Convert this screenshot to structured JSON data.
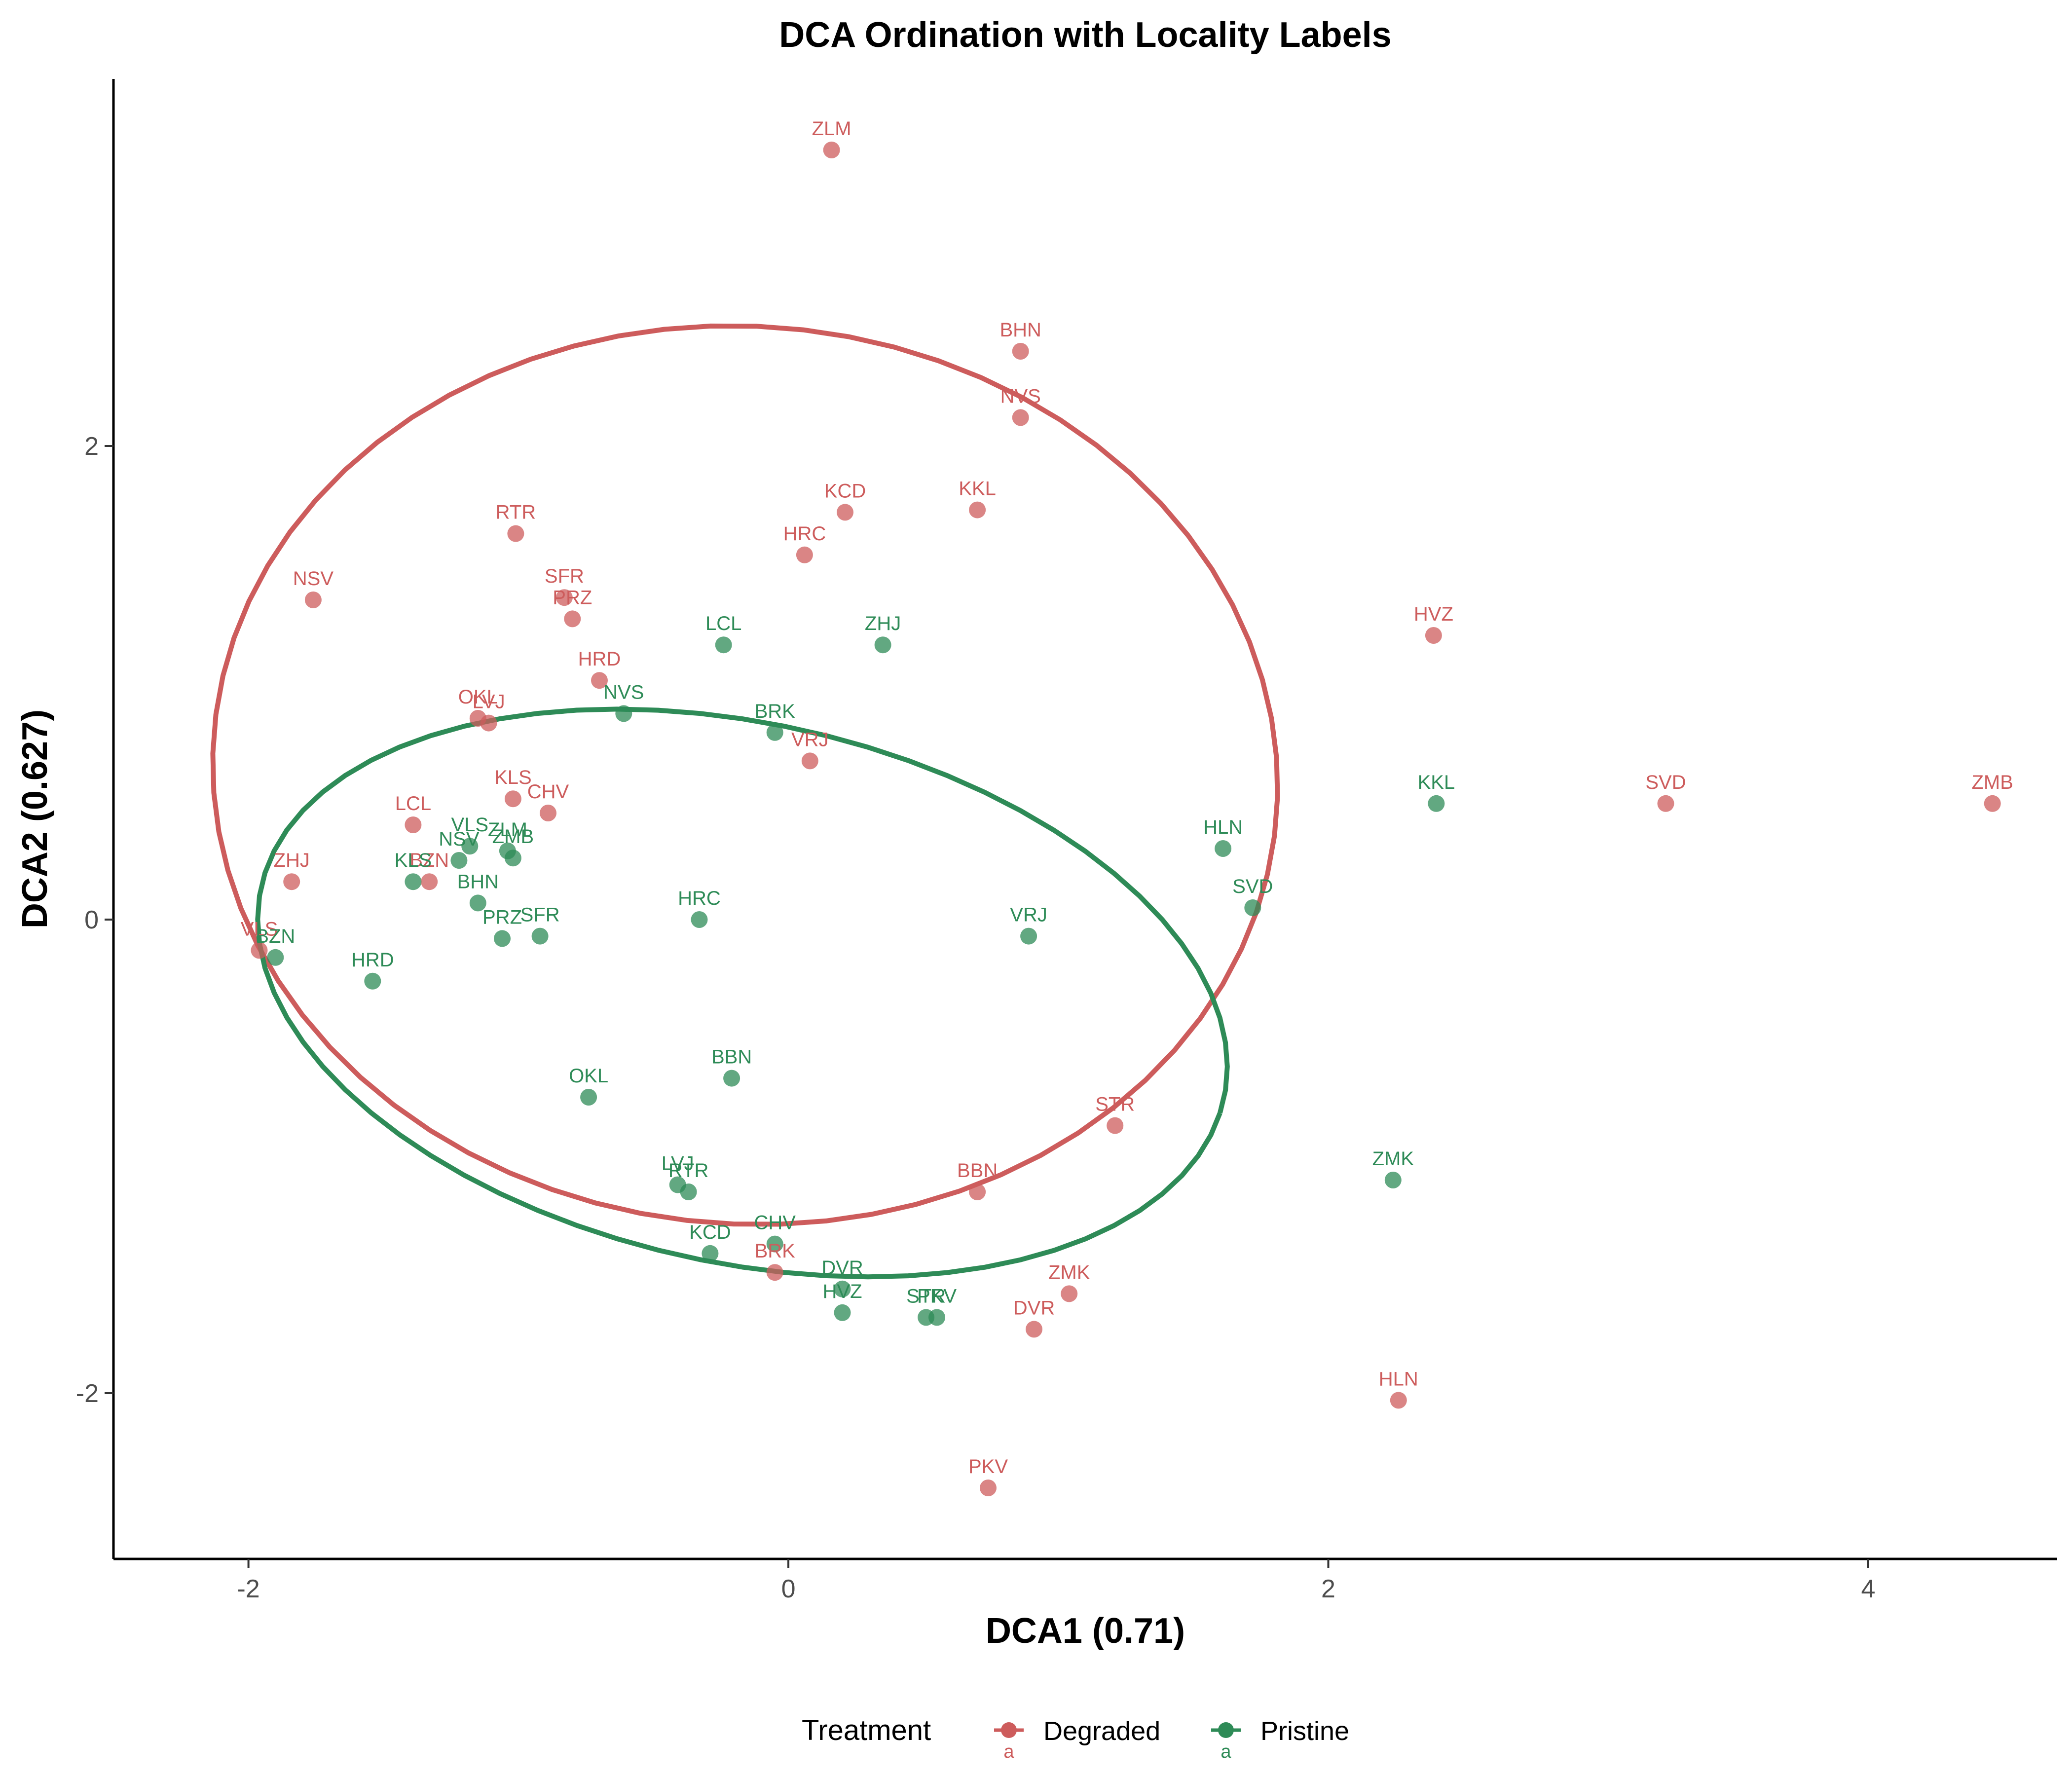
{
  "chart_data": {
    "type": "scatter",
    "title": "DCA Ordination with Locality Labels",
    "xlabel": "DCA1 (0.71)",
    "ylabel": "DCA2 (0.627)",
    "xlim": [
      -2.5,
      4.7
    ],
    "ylim": [
      -2.7,
      3.55
    ],
    "xticks": [
      -2,
      0,
      2,
      4
    ],
    "yticks": [
      -2,
      0,
      2
    ],
    "grid": false,
    "legend": {
      "title": "Treatment",
      "position": "bottom",
      "key_text": "a"
    },
    "series": [
      {
        "name": "Degraded",
        "color": "#cd5c5c",
        "points": [
          {
            "label": "ZLM",
            "x": 0.16,
            "y": 3.25
          },
          {
            "label": "BHN",
            "x": 0.86,
            "y": 2.4
          },
          {
            "label": "NVS",
            "x": 0.86,
            "y": 2.12
          },
          {
            "label": "KCD",
            "x": 0.21,
            "y": 1.72
          },
          {
            "label": "KKL",
            "x": 0.7,
            "y": 1.73
          },
          {
            "label": "RTR",
            "x": -1.01,
            "y": 1.63
          },
          {
            "label": "HRC",
            "x": 0.06,
            "y": 1.54
          },
          {
            "label": "NSV",
            "x": -1.76,
            "y": 1.35
          },
          {
            "label": "SFR",
            "x": -0.83,
            "y": 1.36
          },
          {
            "label": "PRZ",
            "x": -0.8,
            "y": 1.27
          },
          {
            "label": "HVZ",
            "x": 2.39,
            "y": 1.2
          },
          {
            "label": "HRD",
            "x": -0.7,
            "y": 1.01
          },
          {
            "label": "OKL",
            "x": -1.15,
            "y": 0.85
          },
          {
            "label": "LVJ",
            "x": -1.11,
            "y": 0.83
          },
          {
            "label": "VRJ",
            "x": 0.08,
            "y": 0.67
          },
          {
            "label": "KLS",
            "x": -1.02,
            "y": 0.51
          },
          {
            "label": "CHV",
            "x": -0.89,
            "y": 0.45
          },
          {
            "label": "LCL",
            "x": -1.39,
            "y": 0.4
          },
          {
            "label": "SVD",
            "x": 3.25,
            "y": 0.49
          },
          {
            "label": "ZMB",
            "x": 4.46,
            "y": 0.49
          },
          {
            "label": "ZHJ",
            "x": -1.84,
            "y": 0.16
          },
          {
            "label": "BZN",
            "x": -1.33,
            "y": 0.16
          },
          {
            "label": "VLS",
            "x": -1.96,
            "y": -0.13
          },
          {
            "label": "STR",
            "x": 1.21,
            "y": -0.87
          },
          {
            "label": "BBN",
            "x": 0.7,
            "y": -1.15
          },
          {
            "label": "BRK",
            "x": -0.05,
            "y": -1.49
          },
          {
            "label": "ZMK",
            "x": 1.04,
            "y": -1.58
          },
          {
            "label": "DVR",
            "x": 0.91,
            "y": -1.73
          },
          {
            "label": "HLN",
            "x": 2.26,
            "y": -2.03
          },
          {
            "label": "PKV",
            "x": 0.74,
            "y": -2.4
          }
        ]
      },
      {
        "name": "Pristine",
        "color": "#2e8b57",
        "points": [
          {
            "label": "LCL",
            "x": -0.24,
            "y": 1.16
          },
          {
            "label": "ZHJ",
            "x": 0.35,
            "y": 1.16
          },
          {
            "label": "NVS",
            "x": -0.61,
            "y": 0.87
          },
          {
            "label": "BRK",
            "x": -0.05,
            "y": 0.79
          },
          {
            "label": "KKL",
            "x": 2.4,
            "y": 0.49
          },
          {
            "label": "HLN",
            "x": 1.61,
            "y": 0.3
          },
          {
            "label": "NSV",
            "x": -1.22,
            "y": 0.25
          },
          {
            "label": "VLS",
            "x": -1.18,
            "y": 0.31
          },
          {
            "label": "ZLM",
            "x": -1.04,
            "y": 0.29
          },
          {
            "label": "ZMB",
            "x": -1.02,
            "y": 0.26
          },
          {
            "label": "KLS",
            "x": -1.39,
            "y": 0.16
          },
          {
            "label": "BHN",
            "x": -1.15,
            "y": 0.07
          },
          {
            "label": "SVD",
            "x": 1.72,
            "y": 0.05
          },
          {
            "label": "HRC",
            "x": -0.33,
            "y": 0.0
          },
          {
            "label": "VRJ",
            "x": 0.89,
            "y": -0.07
          },
          {
            "label": "PRZ",
            "x": -1.06,
            "y": -0.08
          },
          {
            "label": "SFR",
            "x": -0.92,
            "y": -0.07
          },
          {
            "label": "BZN",
            "x": -1.9,
            "y": -0.16
          },
          {
            "label": "HRD",
            "x": -1.54,
            "y": -0.26
          },
          {
            "label": "BBN",
            "x": -0.21,
            "y": -0.67
          },
          {
            "label": "OKL",
            "x": -0.74,
            "y": -0.75
          },
          {
            "label": "LVJ",
            "x": -0.41,
            "y": -1.12
          },
          {
            "label": "RTR",
            "x": -0.37,
            "y": -1.15
          },
          {
            "label": "ZMK",
            "x": 2.24,
            "y": -1.1
          },
          {
            "label": "CHV",
            "x": -0.05,
            "y": -1.37
          },
          {
            "label": "KCD",
            "x": -0.29,
            "y": -1.41
          },
          {
            "label": "DVR",
            "x": 0.2,
            "y": -1.56
          },
          {
            "label": "HVZ",
            "x": 0.2,
            "y": -1.66
          },
          {
            "label": "STR",
            "x": 0.51,
            "y": -1.68
          },
          {
            "label": "PKV",
            "x": 0.55,
            "y": -1.68
          }
        ]
      }
    ],
    "ellipses": [
      {
        "series": "Degraded",
        "center": [
          -0.16,
          0.61
        ],
        "semi_axes": [
          1.98,
          1.89
        ],
        "rotation_deg": -17
      },
      {
        "series": "Pristine",
        "center": [
          -0.17,
          -0.31
        ],
        "semi_axes": [
          1.84,
          1.13
        ],
        "rotation_deg": -16
      }
    ]
  }
}
